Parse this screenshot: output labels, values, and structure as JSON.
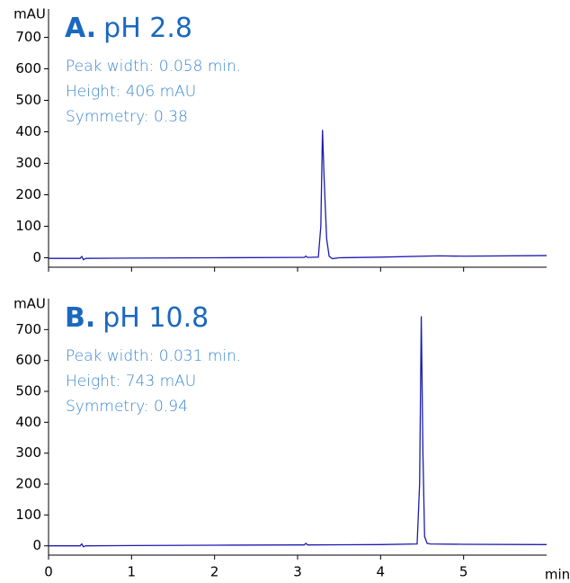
{
  "chart_data": [
    {
      "type": "line",
      "panel_label": "A.",
      "title": "pH 2.8",
      "annotations": [
        "Peak width: 0.058 min.",
        "Height: 406 mAU",
        "Symmetry: 0.38"
      ],
      "y_label": "mAU",
      "color": "#1c1cb0",
      "x": [
        0,
        0.38,
        0.4,
        0.42,
        0.45,
        1,
        2,
        3,
        3.08,
        3.1,
        3.12,
        3.25,
        3.28,
        3.3,
        3.32,
        3.35,
        3.38,
        3.42,
        3.5,
        4,
        4.7,
        5,
        6
      ],
      "values": [
        -2,
        -2,
        4,
        -6,
        -2,
        -1,
        0,
        1,
        1,
        5,
        1,
        2,
        100,
        406,
        250,
        60,
        5,
        -3,
        0,
        2,
        6,
        5,
        7
      ],
      "xlim": [
        0,
        6
      ],
      "xticks": [
        0,
        1,
        2,
        3,
        4,
        5
      ],
      "ylim": [
        -30,
        790
      ],
      "yticks": [
        0,
        100,
        200,
        300,
        400,
        500,
        600,
        700
      ]
    },
    {
      "type": "line",
      "panel_label": "B.",
      "title": "pH 10.8",
      "annotations": [
        "Peak width: 0.031 min.",
        "Height: 743 mAU",
        "Symmetry: 0.94"
      ],
      "y_label": "mAU",
      "x_label": "min",
      "color": "#1c1cb0",
      "x": [
        0,
        0.38,
        0.4,
        0.42,
        0.45,
        1,
        2,
        3,
        3.08,
        3.1,
        3.12,
        4,
        4.44,
        4.47,
        4.49,
        4.51,
        4.53,
        4.56,
        4.6,
        5,
        6
      ],
      "values": [
        0,
        0,
        6,
        -3,
        0,
        1,
        2,
        3,
        3,
        8,
        3,
        4,
        6,
        200,
        743,
        300,
        30,
        8,
        6,
        5,
        4
      ],
      "xlim": [
        0,
        6
      ],
      "xticks": [
        0,
        1,
        2,
        3,
        4,
        5
      ],
      "ylim": [
        -30,
        800
      ],
      "yticks": [
        0,
        100,
        200,
        300,
        400,
        500,
        600,
        700
      ]
    }
  ]
}
